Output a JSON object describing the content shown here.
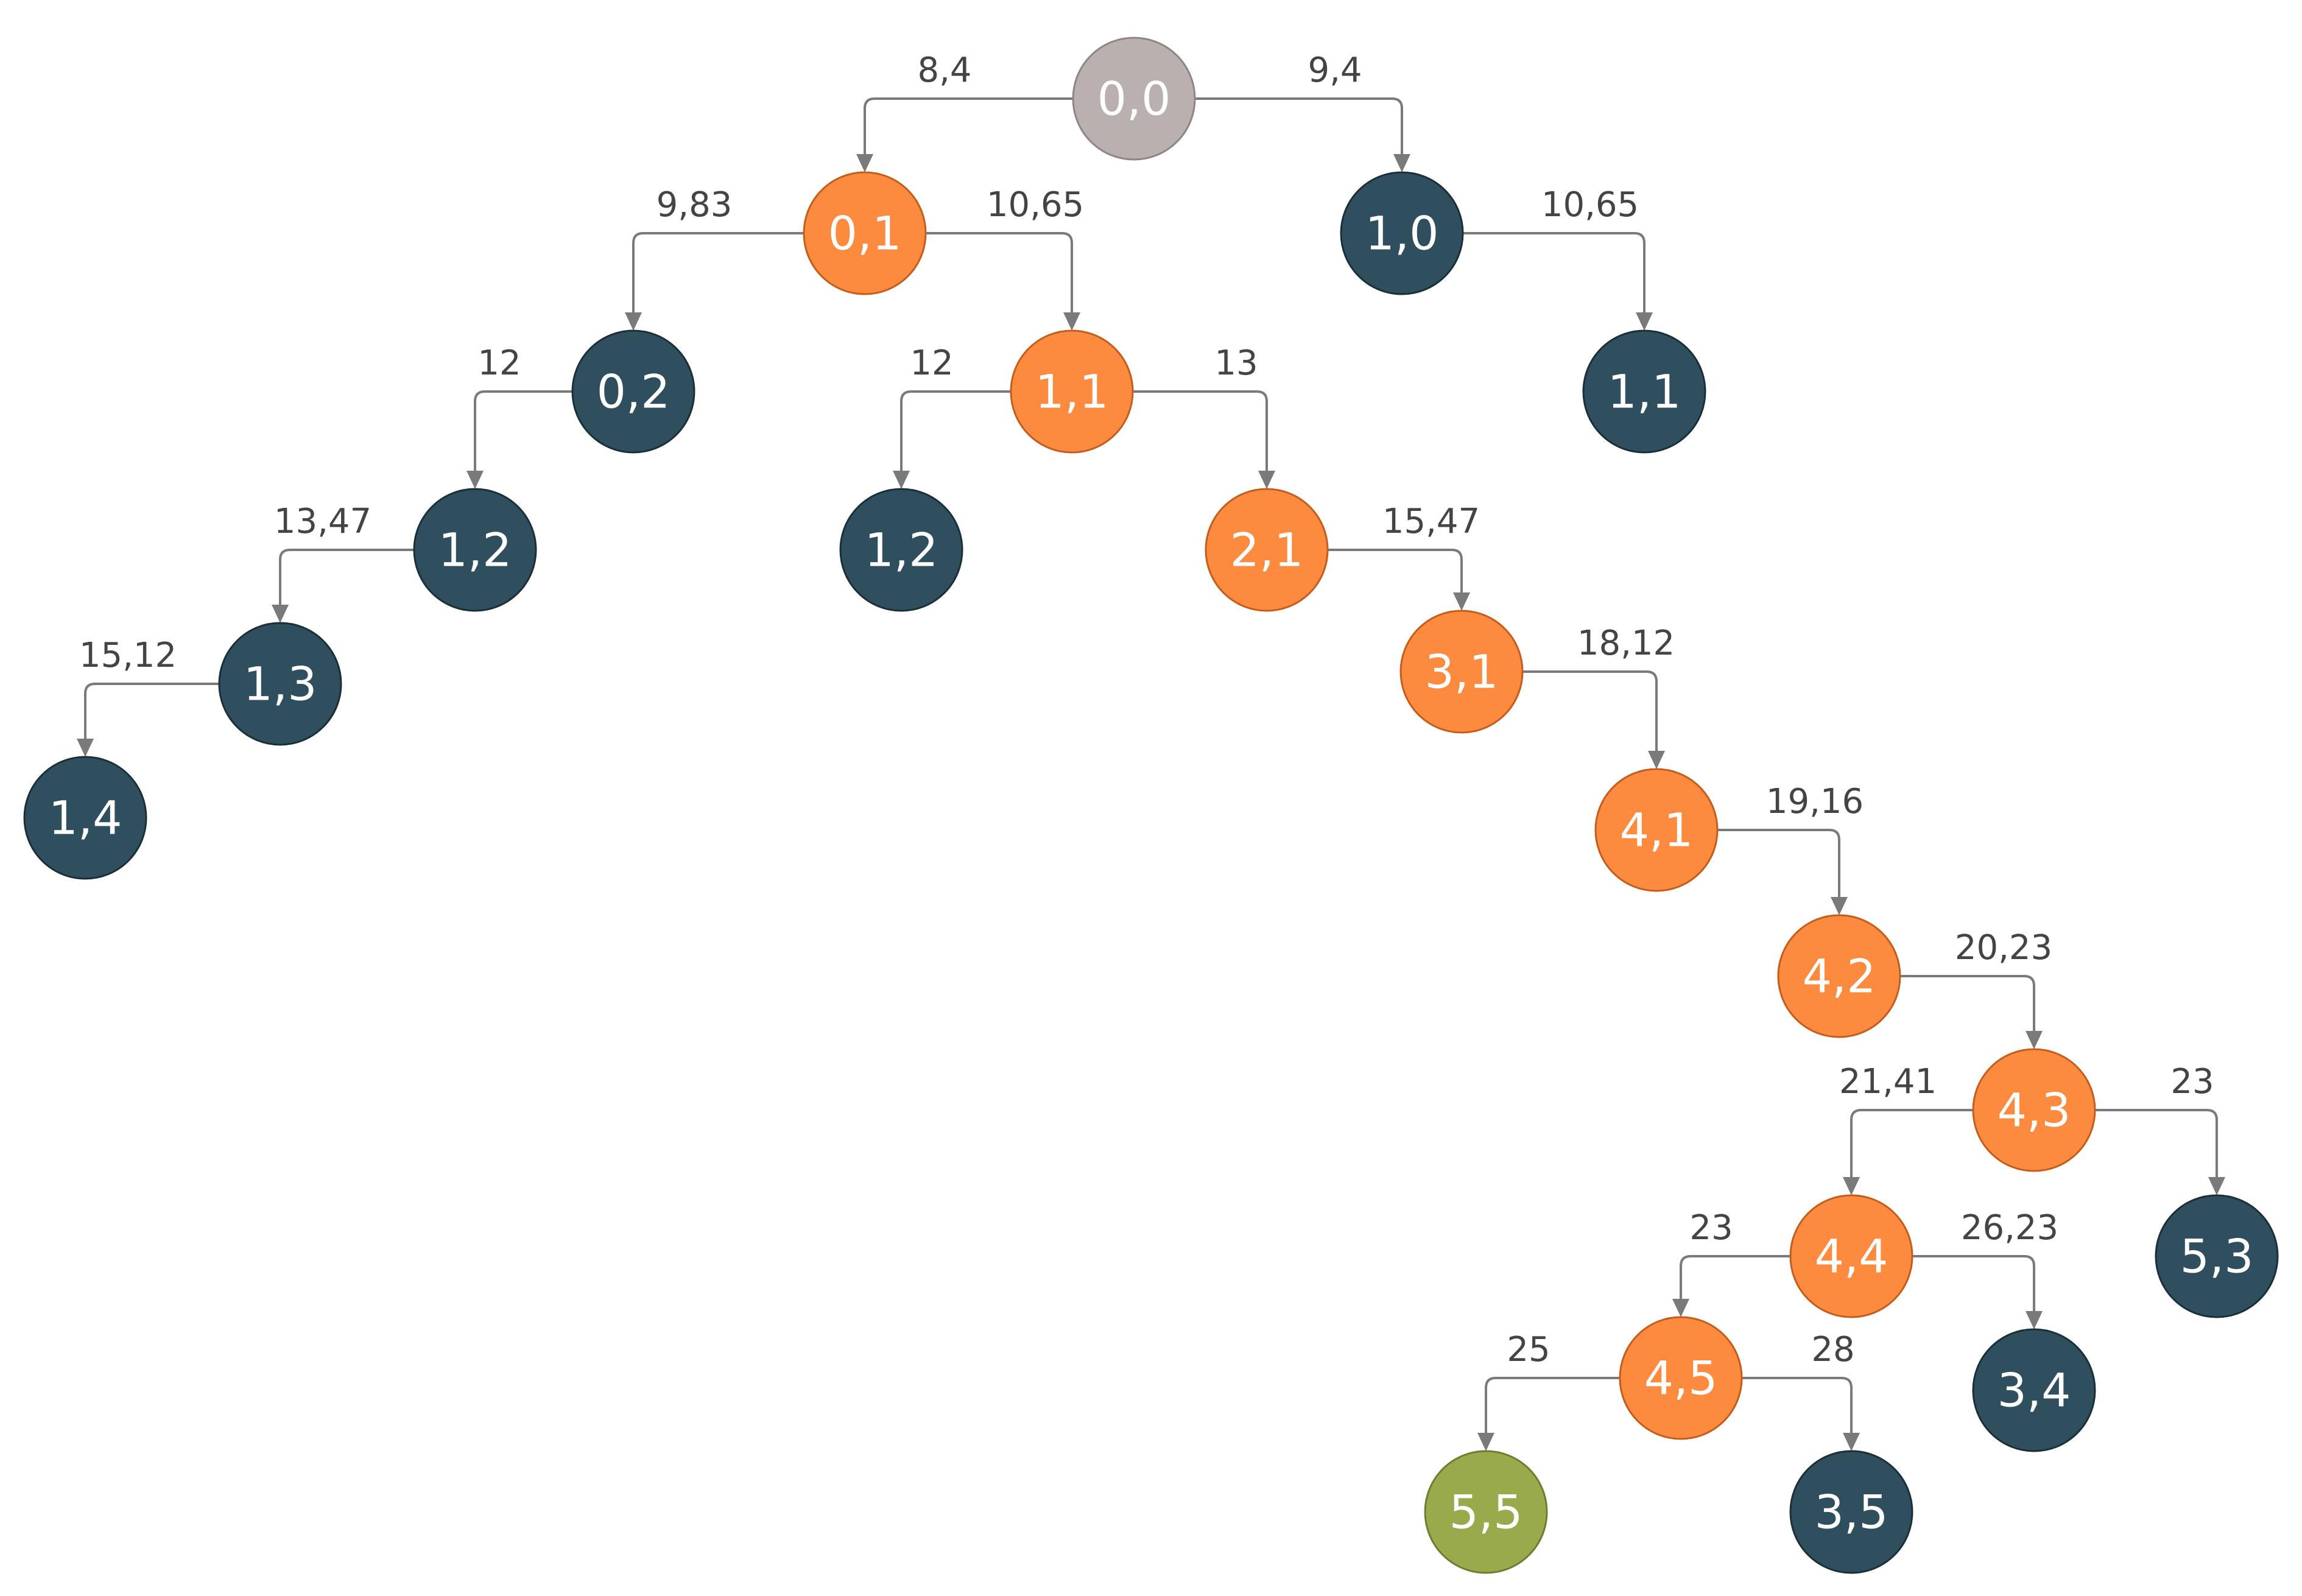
{
  "colors": {
    "root": "#bab0af",
    "path": "#fc8a3f",
    "explored": "#2f4f5f",
    "goal": "#98aa4c",
    "edge": "#7a7a7a",
    "label": "#444444"
  },
  "nodes": [
    {
      "id": "n00",
      "label": "0,0",
      "kind": "root"
    },
    {
      "id": "n01",
      "label": "0,1",
      "kind": "path"
    },
    {
      "id": "n10",
      "label": "1,0",
      "kind": "explored"
    },
    {
      "id": "n02",
      "label": "0,2",
      "kind": "explored"
    },
    {
      "id": "n11",
      "label": "1,1",
      "kind": "path"
    },
    {
      "id": "n11b",
      "label": "1,1",
      "kind": "explored"
    },
    {
      "id": "n12a",
      "label": "1,2",
      "kind": "explored"
    },
    {
      "id": "n12b",
      "label": "1,2",
      "kind": "explored"
    },
    {
      "id": "n21",
      "label": "2,1",
      "kind": "path"
    },
    {
      "id": "n13",
      "label": "1,3",
      "kind": "explored"
    },
    {
      "id": "n31",
      "label": "3,1",
      "kind": "path"
    },
    {
      "id": "n14",
      "label": "1,4",
      "kind": "explored"
    },
    {
      "id": "n41",
      "label": "4,1",
      "kind": "path"
    },
    {
      "id": "n42",
      "label": "4,2",
      "kind": "path"
    },
    {
      "id": "n43",
      "label": "4,3",
      "kind": "path"
    },
    {
      "id": "n44",
      "label": "4,4",
      "kind": "path"
    },
    {
      "id": "n53",
      "label": "5,3",
      "kind": "explored"
    },
    {
      "id": "n45",
      "label": "4,5",
      "kind": "path"
    },
    {
      "id": "n34",
      "label": "3,4",
      "kind": "explored"
    },
    {
      "id": "n55",
      "label": "5,5",
      "kind": "goal"
    },
    {
      "id": "n35",
      "label": "3,5",
      "kind": "explored"
    }
  ],
  "edges": [
    {
      "from": "n00",
      "to": "n01",
      "label": "8,4"
    },
    {
      "from": "n00",
      "to": "n10",
      "label": "9,4"
    },
    {
      "from": "n01",
      "to": "n02",
      "label": "9,83"
    },
    {
      "from": "n01",
      "to": "n11",
      "label": "10,65"
    },
    {
      "from": "n10",
      "to": "n11b",
      "label": "10,65"
    },
    {
      "from": "n02",
      "to": "n12a",
      "label": "12"
    },
    {
      "from": "n11",
      "to": "n12b",
      "label": "12"
    },
    {
      "from": "n11",
      "to": "n21",
      "label": "13"
    },
    {
      "from": "n12a",
      "to": "n13",
      "label": "13,47"
    },
    {
      "from": "n21",
      "to": "n31",
      "label": "15,47"
    },
    {
      "from": "n13",
      "to": "n14",
      "label": "15,12"
    },
    {
      "from": "n31",
      "to": "n41",
      "label": "18,12"
    },
    {
      "from": "n41",
      "to": "n42",
      "label": "19,16"
    },
    {
      "from": "n42",
      "to": "n43",
      "label": "20,23"
    },
    {
      "from": "n43",
      "to": "n44",
      "label": "21,41"
    },
    {
      "from": "n43",
      "to": "n53",
      "label": "23"
    },
    {
      "from": "n44",
      "to": "n45",
      "label": "23"
    },
    {
      "from": "n44",
      "to": "n34",
      "label": "26,23"
    },
    {
      "from": "n45",
      "to": "n55",
      "label": "25"
    },
    {
      "from": "n45",
      "to": "n35",
      "label": "28"
    }
  ]
}
